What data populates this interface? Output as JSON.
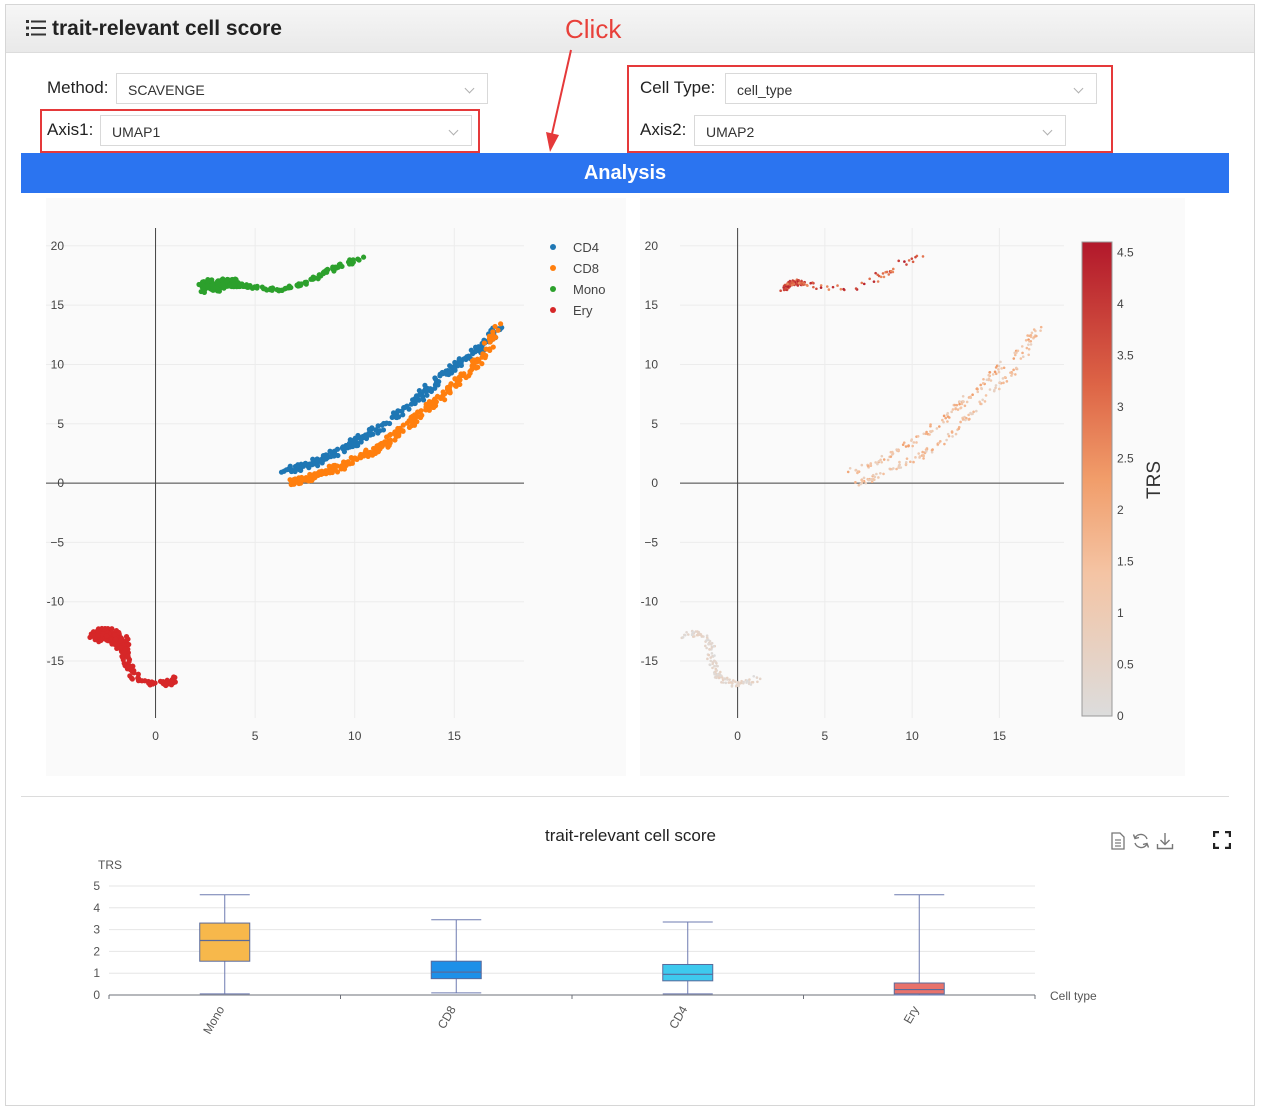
{
  "header": {
    "title": "trait-relevant cell score",
    "menu_icon": "list-icon"
  },
  "annotation": {
    "text": "Click"
  },
  "controls": {
    "method": {
      "label": "Method:",
      "value": "SCAVENGE"
    },
    "axis1": {
      "label": "Axis1:",
      "value": "UMAP1"
    },
    "cell_type": {
      "label": "Cell Type:",
      "value": "cell_type"
    },
    "axis2": {
      "label": "Axis2:",
      "value": "UMAP2"
    }
  },
  "analysis_button": {
    "label": "Analysis"
  },
  "colors": {
    "accent": "#2b74f0",
    "annotation": "#e5393a",
    "CD4": "#1f77b4",
    "CD8": "#ff7f0e",
    "Mono": "#2ca02c",
    "Ery": "#d62728"
  },
  "chart_data": [
    {
      "type": "scatter",
      "title": "",
      "legend": {
        "placement": "top-right",
        "entries": [
          "CD4",
          "CD8",
          "Mono",
          "Ery"
        ]
      },
      "x_ticks": [
        0,
        5,
        10,
        15
      ],
      "y_ticks": [
        20,
        15,
        10,
        5,
        0,
        -5,
        -10,
        -15
      ],
      "y_tick_labels": [
        "20",
        "15",
        "10",
        "5",
        "0",
        "−5",
        "-10",
        "-15"
      ],
      "xlim": [
        -5.5,
        18.5
      ],
      "ylim": [
        -19.8,
        21.5
      ],
      "series": [
        {
          "name": "CD4",
          "x": [
            6.5,
            7.5,
            8.5,
            9.5,
            10.5,
            11.5,
            12.5,
            13.5,
            14.5,
            15.5,
            16.5,
            17.2
          ],
          "y": [
            1.0,
            1.4,
            2.1,
            3.0,
            3.9,
            5.0,
            6.2,
            7.6,
            9.1,
            10.4,
            11.7,
            13.0
          ]
        },
        {
          "name": "CD8",
          "x": [
            6.8,
            7.5,
            8.5,
            9.5,
            10.5,
            11.5,
            12.5,
            13.5,
            14.5,
            15.5,
            16.5,
            17.3
          ],
          "y": [
            0.0,
            0.3,
            0.9,
            1.6,
            2.3,
            3.2,
            4.6,
            6.1,
            7.6,
            9.1,
            10.8,
            13.3
          ]
        },
        {
          "name": "Mono",
          "x": [
            2.6,
            3.0,
            3.5,
            4.0,
            4.5,
            5.5,
            6.5,
            7.5,
            8.5,
            9.5,
            10.5
          ],
          "y": [
            16.4,
            16.8,
            16.9,
            16.8,
            16.6,
            16.4,
            16.3,
            16.9,
            17.8,
            18.5,
            19.0
          ]
        },
        {
          "name": "Ery",
          "x": [
            -3.0,
            -2.5,
            -2.0,
            -1.6,
            -1.5,
            -1.3,
            -1.0,
            -0.3,
            0.5,
            1.1
          ],
          "y": [
            -13.0,
            -12.6,
            -12.9,
            -13.6,
            -14.5,
            -15.6,
            -16.4,
            -16.9,
            -16.9,
            -16.5
          ]
        }
      ]
    },
    {
      "type": "scatter",
      "title": "",
      "colorbar": {
        "title": "TRS",
        "ticks": [
          "0",
          "0.5",
          "1",
          "1.5",
          "2",
          "2.5",
          "3",
          "3.5",
          "4",
          "4.5"
        ],
        "range": [
          0,
          4.6
        ]
      },
      "x_ticks": [
        0,
        5,
        10,
        15
      ],
      "y_ticks": [
        20,
        15,
        10,
        5,
        0,
        -5,
        -10,
        -15
      ],
      "y_tick_labels": [
        "20",
        "15",
        "10",
        "5",
        "0",
        "−5",
        "-10",
        "-15"
      ],
      "xlim": [
        -3.3,
        18.7
      ],
      "ylim": [
        -19.8,
        21.5
      ]
    },
    {
      "type": "box",
      "title": "trait-relevant cell score",
      "ylabel": "TRS",
      "xlabel": "Cell type",
      "ylim": [
        0,
        5
      ],
      "y_ticks": [
        0,
        1,
        2,
        3,
        4,
        5
      ],
      "categories": [
        "Mono",
        "CD8",
        "CD4",
        "Ery"
      ],
      "boxes": [
        {
          "min": 0.05,
          "q1": 1.55,
          "median": 2.5,
          "q3": 3.3,
          "max": 4.6,
          "color": "#f7b84b"
        },
        {
          "min": 0.1,
          "q1": 0.75,
          "median": 1.05,
          "q3": 1.55,
          "max": 3.45,
          "color": "#1e90e8"
        },
        {
          "min": 0.05,
          "q1": 0.65,
          "median": 0.95,
          "q3": 1.4,
          "max": 3.35,
          "color": "#3ec9ee"
        },
        {
          "min": 0.0,
          "q1": 0.05,
          "median": 0.25,
          "q3": 0.55,
          "max": 4.6,
          "color": "#e8726b"
        }
      ]
    }
  ]
}
